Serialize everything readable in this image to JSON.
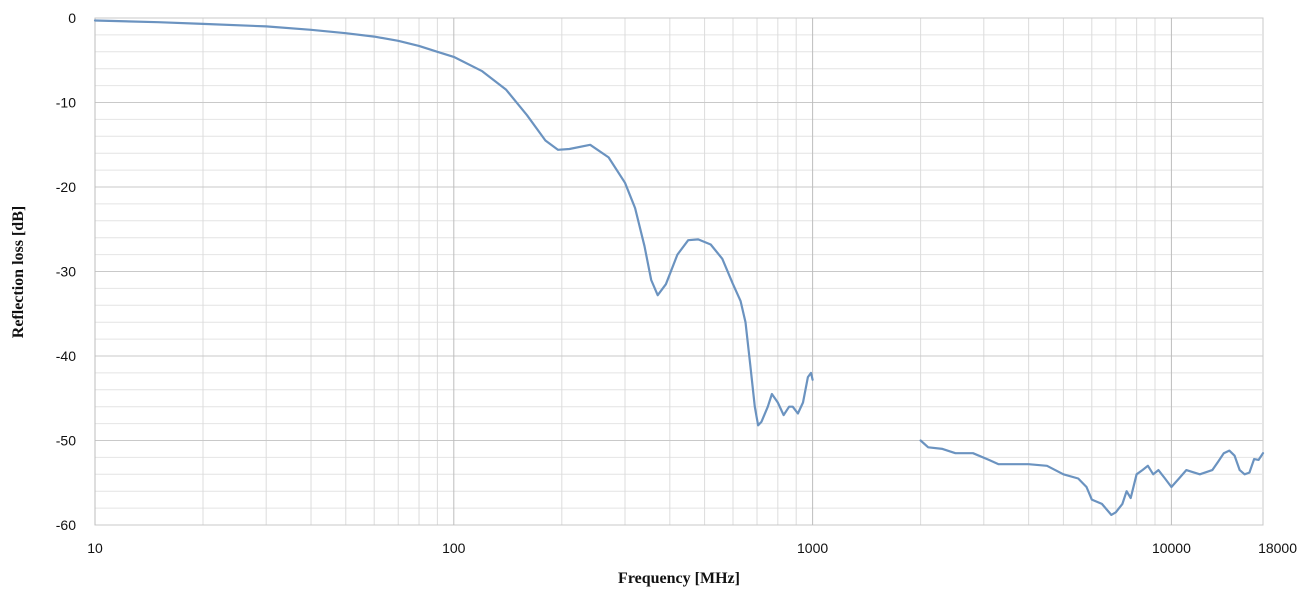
{
  "chart_data": {
    "type": "line",
    "title": "",
    "xlabel": "Frequency [MHz]",
    "ylabel": "Reflection loss [dB]",
    "xscale": "log",
    "xlim": [
      10,
      18000
    ],
    "ylim": [
      -60,
      0
    ],
    "x_tick_labels": [
      "10",
      "100",
      "1000",
      "10000",
      "18000"
    ],
    "y_tick_labels": [
      "0",
      "-10",
      "-20",
      "-30",
      "-40",
      "-50",
      "-60"
    ],
    "grid": true,
    "legend": "none",
    "series_color": "#6b93c0",
    "series": [
      {
        "values": [
          [
            10,
            -0.3
          ],
          [
            15,
            -0.5
          ],
          [
            20,
            -0.7
          ],
          [
            30,
            -1.0
          ],
          [
            40,
            -1.4
          ],
          [
            50,
            -1.8
          ],
          [
            60,
            -2.2
          ],
          [
            70,
            -2.7
          ],
          [
            80,
            -3.3
          ],
          [
            90,
            -4.0
          ],
          [
            100,
            -4.6
          ],
          [
            120,
            -6.3
          ],
          [
            140,
            -8.5
          ],
          [
            160,
            -11.5
          ],
          [
            180,
            -14.5
          ],
          [
            195,
            -15.6
          ],
          [
            210,
            -15.5
          ],
          [
            240,
            -15.0
          ],
          [
            270,
            -16.5
          ],
          [
            300,
            -19.5
          ],
          [
            320,
            -22.5
          ],
          [
            340,
            -27.0
          ],
          [
            355,
            -31.0
          ],
          [
            370,
            -32.8
          ],
          [
            390,
            -31.5
          ],
          [
            420,
            -28.0
          ],
          [
            450,
            -26.3
          ],
          [
            480,
            -26.2
          ],
          [
            520,
            -26.8
          ],
          [
            560,
            -28.5
          ],
          [
            600,
            -31.5
          ],
          [
            630,
            -33.5
          ],
          [
            650,
            -36.0
          ],
          [
            670,
            -41.0
          ],
          [
            690,
            -46.0
          ],
          [
            705,
            -48.2
          ],
          [
            720,
            -47.8
          ],
          [
            750,
            -46.0
          ],
          [
            770,
            -44.5
          ],
          [
            800,
            -45.5
          ],
          [
            830,
            -47.0
          ],
          [
            860,
            -46.0
          ],
          [
            880,
            -46.0
          ],
          [
            910,
            -46.8
          ],
          [
            940,
            -45.5
          ],
          [
            970,
            -42.5
          ],
          [
            990,
            -42.0
          ],
          [
            1000,
            -42.8
          ]
        ]
      },
      {
        "values": [
          [
            2000,
            -50.0
          ],
          [
            2100,
            -50.8
          ],
          [
            2300,
            -51.0
          ],
          [
            2500,
            -51.5
          ],
          [
            2800,
            -51.5
          ],
          [
            3100,
            -52.3
          ],
          [
            3300,
            -52.8
          ],
          [
            3600,
            -52.8
          ],
          [
            4000,
            -52.8
          ],
          [
            4500,
            -53.0
          ],
          [
            5000,
            -54.0
          ],
          [
            5500,
            -54.5
          ],
          [
            5800,
            -55.5
          ],
          [
            6000,
            -57.0
          ],
          [
            6400,
            -57.5
          ],
          [
            6800,
            -58.8
          ],
          [
            7000,
            -58.5
          ],
          [
            7300,
            -57.5
          ],
          [
            7500,
            -56.0
          ],
          [
            7700,
            -56.8
          ],
          [
            8000,
            -54.0
          ],
          [
            8300,
            -53.5
          ],
          [
            8600,
            -53.0
          ],
          [
            8900,
            -54.0
          ],
          [
            9200,
            -53.5
          ],
          [
            9600,
            -54.5
          ],
          [
            10000,
            -55.5
          ],
          [
            10500,
            -54.5
          ],
          [
            11000,
            -53.5
          ],
          [
            12000,
            -54.0
          ],
          [
            13000,
            -53.5
          ],
          [
            13500,
            -52.5
          ],
          [
            14000,
            -51.5
          ],
          [
            14500,
            -51.2
          ],
          [
            15000,
            -51.8
          ],
          [
            15500,
            -53.5
          ],
          [
            16000,
            -54.0
          ],
          [
            16500,
            -53.8
          ],
          [
            17000,
            -52.2
          ],
          [
            17500,
            -52.3
          ],
          [
            18000,
            -51.5
          ]
        ]
      }
    ]
  }
}
